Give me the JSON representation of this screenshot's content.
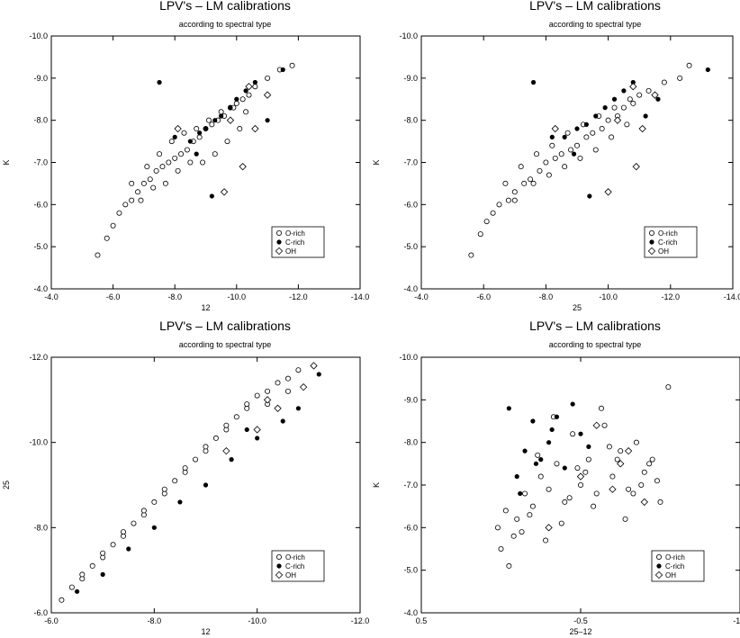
{
  "chart_data": [
    {
      "type": "scatter",
      "title": "LPV's – LM calibrations",
      "subtitle": "according to spectral type",
      "xlabel": "12",
      "ylabel": "K",
      "xlim": [
        -4.0,
        -14.0
      ],
      "ylim": [
        -4.0,
        -10.0
      ],
      "x_ticks": [
        "-4.0",
        "-6.0",
        "-8.0",
        "-10.0",
        "-12.0",
        "-14.0"
      ],
      "y_ticks": [
        "-4.0",
        "-5.0",
        "-6.0",
        "-7.0",
        "-8.0",
        "-9.0",
        "-10.0"
      ],
      "legend": [
        "O-rich",
        "C-rich",
        "OH"
      ],
      "legend_position": "bottom-right",
      "series": [
        {
          "name": "O-rich",
          "marker": "open-circle",
          "x": [
            -5.5,
            -5.8,
            -6.0,
            -6.2,
            -6.4,
            -6.6,
            -6.8,
            -7.0,
            -7.2,
            -7.4,
            -7.6,
            -7.8,
            -8.0,
            -8.2,
            -8.4,
            -8.6,
            -8.8,
            -9.0,
            -9.2,
            -9.4,
            -9.6,
            -9.8,
            -10.0,
            -10.2,
            -10.4,
            -10.6,
            -11.0,
            -11.4,
            -11.8,
            -6.9,
            -7.3,
            -7.7,
            -8.1,
            -8.5,
            -8.9,
            -9.3,
            -9.7,
            -10.1,
            -6.6,
            -7.1,
            -7.5,
            -7.9,
            -8.3,
            -8.7,
            -9.1,
            -9.5,
            -9.9,
            -10.3
          ],
          "y": [
            -4.8,
            -5.2,
            -5.5,
            -5.8,
            -6.0,
            -6.1,
            -6.3,
            -6.5,
            -6.6,
            -6.8,
            -6.9,
            -7.0,
            -7.1,
            -7.2,
            -7.3,
            -7.5,
            -7.6,
            -7.8,
            -7.9,
            -8.0,
            -8.1,
            -8.3,
            -8.4,
            -8.5,
            -8.6,
            -8.8,
            -9.0,
            -9.2,
            -9.3,
            -6.1,
            -6.4,
            -6.5,
            -6.8,
            -7.0,
            -7.0,
            -7.2,
            -7.5,
            -7.8,
            -6.5,
            -6.9,
            -7.2,
            -7.5,
            -7.7,
            -7.8,
            -8.0,
            -8.2,
            -8.3,
            -8.2
          ]
        },
        {
          "name": "C-rich",
          "marker": "filled-circle",
          "x": [
            -7.5,
            -8.0,
            -8.5,
            -8.8,
            -9.0,
            -9.3,
            -9.5,
            -9.8,
            -10.0,
            -10.3,
            -10.6,
            -11.0,
            -11.5,
            -9.2,
            -8.7
          ],
          "y": [
            -8.9,
            -7.6,
            -7.5,
            -7.7,
            -7.8,
            -8.0,
            -8.1,
            -8.3,
            -8.5,
            -8.7,
            -8.9,
            -8.0,
            -9.2,
            -6.2,
            -7.2
          ]
        },
        {
          "name": "OH",
          "marker": "open-diamond",
          "x": [
            -8.1,
            -9.6,
            -10.2,
            -10.6,
            -11.0,
            -9.8,
            -10.4
          ],
          "y": [
            -7.8,
            -6.3,
            -6.9,
            -7.8,
            -8.6,
            -8.0,
            -8.8
          ]
        }
      ]
    },
    {
      "type": "scatter",
      "title": "LPV's – LM calibrations",
      "subtitle": "according to spectral type",
      "xlabel": "25",
      "ylabel": "K",
      "xlim": [
        -4.0,
        -14.0
      ],
      "ylim": [
        -4.0,
        -10.0
      ],
      "x_ticks": [
        "-4.0",
        "-6.0",
        "-8.0",
        "-10.0",
        "-12.0",
        "-14.0"
      ],
      "y_ticks": [
        "-4.0",
        "-5.0",
        "-6.0",
        "-7.0",
        "-8.0",
        "-9.0",
        "-10.0"
      ],
      "legend": [
        "O-rich",
        "C-rich",
        "OH"
      ],
      "legend_position": "bottom-right",
      "series": [
        {
          "name": "O-rich",
          "marker": "open-circle",
          "x": [
            -5.6,
            -5.9,
            -6.1,
            -6.3,
            -6.5,
            -6.8,
            -7.0,
            -7.3,
            -7.5,
            -7.8,
            -8.0,
            -8.3,
            -8.5,
            -8.8,
            -9.0,
            -9.3,
            -9.5,
            -9.8,
            -10.0,
            -10.3,
            -10.5,
            -10.8,
            -11.0,
            -11.3,
            -11.8,
            -12.3,
            -12.6,
            -7.0,
            -7.6,
            -8.1,
            -8.6,
            -9.1,
            -9.6,
            -10.1,
            -10.6,
            -6.7,
            -7.2,
            -7.7,
            -8.2,
            -8.7,
            -9.2,
            -9.7,
            -10.2,
            -10.7
          ],
          "y": [
            -4.8,
            -5.3,
            -5.6,
            -5.8,
            -6.0,
            -6.1,
            -6.3,
            -6.5,
            -6.6,
            -6.8,
            -7.0,
            -7.1,
            -7.2,
            -7.3,
            -7.4,
            -7.6,
            -7.7,
            -7.8,
            -8.0,
            -8.1,
            -8.3,
            -8.4,
            -8.6,
            -8.7,
            -8.9,
            -9.0,
            -9.3,
            -6.1,
            -6.5,
            -6.7,
            -6.9,
            -7.1,
            -7.3,
            -7.6,
            -7.9,
            -6.5,
            -6.9,
            -7.2,
            -7.4,
            -7.7,
            -7.9,
            -8.1,
            -8.3,
            -8.5
          ]
        },
        {
          "name": "C-rich",
          "marker": "filled-circle",
          "x": [
            -7.6,
            -8.2,
            -8.6,
            -9.0,
            -9.3,
            -9.6,
            -9.9,
            -10.2,
            -10.5,
            -10.8,
            -11.2,
            -11.6,
            -13.2,
            -9.4,
            -8.9
          ],
          "y": [
            -8.9,
            -7.6,
            -7.6,
            -7.8,
            -7.9,
            -8.1,
            -8.3,
            -8.5,
            -8.7,
            -8.9,
            -8.1,
            -8.5,
            -9.2,
            -6.2,
            -7.2
          ]
        },
        {
          "name": "OH",
          "marker": "open-diamond",
          "x": [
            -8.3,
            -10.0,
            -10.9,
            -11.1,
            -11.5,
            -10.3,
            -10.8
          ],
          "y": [
            -7.8,
            -6.3,
            -6.9,
            -7.8,
            -8.6,
            -8.0,
            -8.8
          ]
        }
      ]
    },
    {
      "type": "scatter",
      "title": "LPV's – LM calibrations",
      "subtitle": "according to spectral type",
      "xlabel": "12",
      "ylabel": "25",
      "xlim": [
        -6.0,
        -12.0
      ],
      "ylim": [
        -6.0,
        -12.0
      ],
      "x_ticks": [
        "-6.0",
        "-8.0",
        "-10.0",
        "-12.0"
      ],
      "y_ticks": [
        "-6.0",
        "-8.0",
        "-10.0",
        "-12.0"
      ],
      "legend": [
        "O-rich",
        "C-rich",
        "OH"
      ],
      "legend_position": "bottom-right",
      "series": [
        {
          "name": "O-rich",
          "marker": "open-circle",
          "x": [
            -6.2,
            -6.4,
            -6.6,
            -6.8,
            -7.0,
            -7.2,
            -7.4,
            -7.6,
            -7.8,
            -8.0,
            -8.2,
            -8.4,
            -8.6,
            -8.8,
            -9.0,
            -9.2,
            -9.4,
            -9.6,
            -9.8,
            -10.0,
            -10.2,
            -10.4,
            -10.6,
            -10.8,
            -6.6,
            -7.0,
            -7.4,
            -7.8,
            -8.2,
            -8.6,
            -9.0,
            -9.4,
            -9.8,
            -10.2,
            -10.6
          ],
          "y": [
            -6.3,
            -6.6,
            -6.8,
            -7.1,
            -7.3,
            -7.6,
            -7.8,
            -8.1,
            -8.3,
            -8.6,
            -8.8,
            -9.1,
            -9.3,
            -9.6,
            -9.8,
            -10.1,
            -10.3,
            -10.6,
            -10.8,
            -11.1,
            -11.2,
            -11.4,
            -11.5,
            -11.7,
            -6.9,
            -7.4,
            -7.9,
            -8.4,
            -8.9,
            -9.4,
            -9.9,
            -10.4,
            -10.9,
            -10.9,
            -11.2
          ]
        },
        {
          "name": "C-rich",
          "marker": "filled-circle",
          "x": [
            -6.5,
            -7.0,
            -7.5,
            -8.0,
            -8.5,
            -9.0,
            -9.5,
            -10.0,
            -10.5,
            -10.8,
            -11.2,
            -9.8
          ],
          "y": [
            -6.5,
            -6.9,
            -7.5,
            -8.0,
            -8.6,
            -9.0,
            -9.6,
            -10.1,
            -10.5,
            -10.8,
            -11.6,
            -10.3
          ]
        },
        {
          "name": "OH",
          "marker": "open-diamond",
          "x": [
            -9.4,
            -10.0,
            -10.4,
            -10.9,
            -11.1,
            -10.2
          ],
          "y": [
            -9.8,
            -10.3,
            -10.8,
            -11.3,
            -11.8,
            -11.0
          ]
        }
      ]
    },
    {
      "type": "scatter",
      "title": "LPV's – LM calibrations",
      "subtitle": "according to spectral type",
      "xlabel": "25–12",
      "ylabel": "K",
      "xlim": [
        0.5,
        -1.5
      ],
      "ylim": [
        -4.0,
        -10.0
      ],
      "x_ticks": [
        "0.5",
        "-0.5",
        "-1.5"
      ],
      "y_ticks": [
        "-4.0",
        "-5.0",
        "-6.0",
        "-7.0",
        "-8.0",
        "-9.0",
        "-10.0"
      ],
      "legend": [
        "O-rich",
        "C-rich",
        "OH"
      ],
      "legend_position": "bottom-right",
      "series": [
        {
          "name": "O-rich",
          "marker": "open-circle",
          "x": [
            0.0,
            -0.05,
            -0.1,
            -0.15,
            -0.2,
            -0.25,
            -0.3,
            -0.35,
            -0.4,
            -0.45,
            -0.5,
            -0.55,
            -0.6,
            -0.65,
            -0.7,
            -0.75,
            -0.8,
            -0.85,
            -0.9,
            -0.95,
            -1.0,
            -1.05,
            0.02,
            -0.08,
            -0.18,
            -0.28,
            -0.38,
            -0.48,
            -0.58,
            -0.68,
            -0.78,
            -0.88,
            -0.98,
            -0.03,
            -0.13,
            -0.23,
            -0.33,
            -0.43,
            -0.53,
            -0.63,
            -0.73,
            -0.83,
            -0.93
          ],
          "y": [
            -5.5,
            -5.1,
            -6.2,
            -6.8,
            -6.5,
            -7.2,
            -6.9,
            -7.5,
            -6.6,
            -8.2,
            -7.0,
            -7.6,
            -6.8,
            -8.4,
            -7.2,
            -7.8,
            -6.9,
            -8.0,
            -7.3,
            -7.6,
            -6.6,
            -9.3,
            -6.0,
            -5.8,
            -6.3,
            -5.7,
            -6.1,
            -7.4,
            -6.5,
            -7.9,
            -6.2,
            -7.0,
            -7.1,
            -6.4,
            -5.9,
            -7.7,
            -8.6,
            -6.7,
            -7.3,
            -8.8,
            -7.6,
            -6.8,
            -7.5
          ]
        },
        {
          "name": "C-rich",
          "marker": "filled-circle",
          "x": [
            -0.05,
            -0.1,
            -0.15,
            -0.2,
            -0.25,
            -0.3,
            -0.35,
            -0.4,
            -0.45,
            -0.5,
            -0.55,
            -0.6,
            -0.12,
            -0.22,
            -0.32
          ],
          "y": [
            -8.8,
            -7.2,
            -7.8,
            -8.5,
            -7.6,
            -8.0,
            -8.6,
            -7.4,
            -8.9,
            -8.2,
            -7.9,
            -8.4,
            -6.8,
            -7.5,
            -8.3
          ]
        },
        {
          "name": "OH",
          "marker": "open-diamond",
          "x": [
            -0.3,
            -0.5,
            -0.6,
            -0.7,
            -0.8,
            -0.9,
            -0.75
          ],
          "y": [
            -6.0,
            -7.2,
            -8.4,
            -6.9,
            -7.8,
            -6.6,
            -7.5
          ]
        }
      ]
    }
  ]
}
